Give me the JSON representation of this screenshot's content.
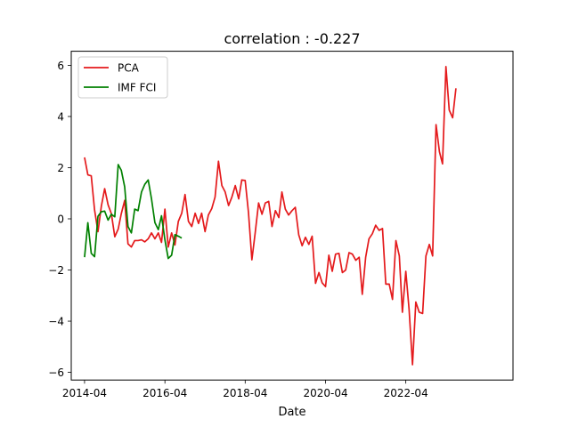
{
  "chart_data": {
    "type": "line",
    "title": "correlation : -0.227",
    "xlabel": "Date",
    "ylabel": "",
    "xlim": [
      "2013-12-01",
      "2024-12-01"
    ],
    "ylim": [
      -6.3,
      6.55
    ],
    "grid": false,
    "legend_position": "top-left",
    "x_ticks": [
      "2014-04",
      "2016-04",
      "2018-04",
      "2020-04",
      "2022-04"
    ],
    "y_ticks": [
      -6,
      -4,
      -2,
      0,
      2,
      4,
      6
    ],
    "series": [
      {
        "name": "PCA",
        "color": "#e41a1c",
        "points": [
          [
            "2014-04-01",
            2.4
          ],
          [
            "2014-05-01",
            1.72
          ],
          [
            "2014-06-01",
            1.68
          ],
          [
            "2014-07-01",
            0.35
          ],
          [
            "2014-08-01",
            -0.5
          ],
          [
            "2014-09-01",
            0.5
          ],
          [
            "2014-10-01",
            1.18
          ],
          [
            "2014-11-01",
            0.55
          ],
          [
            "2014-12-01",
            0.2
          ],
          [
            "2015-01-01",
            -0.7
          ],
          [
            "2015-02-01",
            -0.4
          ],
          [
            "2015-03-01",
            0.2
          ],
          [
            "2015-04-01",
            0.72
          ],
          [
            "2015-05-01",
            -0.98
          ],
          [
            "2015-06-01",
            -1.1
          ],
          [
            "2015-07-01",
            -0.85
          ],
          [
            "2015-08-01",
            -0.85
          ],
          [
            "2015-09-01",
            -0.82
          ],
          [
            "2015-10-01",
            -0.9
          ],
          [
            "2015-11-01",
            -0.78
          ],
          [
            "2015-12-01",
            -0.55
          ],
          [
            "2016-01-01",
            -0.78
          ],
          [
            "2016-02-01",
            -0.55
          ],
          [
            "2016-03-01",
            -0.92
          ],
          [
            "2016-04-01",
            0.38
          ],
          [
            "2016-05-01",
            -1.1
          ],
          [
            "2016-06-01",
            -0.55
          ],
          [
            "2016-07-01",
            -1.02
          ],
          [
            "2016-08-01",
            -0.1
          ],
          [
            "2016-09-01",
            0.22
          ],
          [
            "2016-10-01",
            0.95
          ],
          [
            "2016-11-01",
            -0.1
          ],
          [
            "2016-12-01",
            -0.3
          ],
          [
            "2017-01-01",
            0.22
          ],
          [
            "2017-02-01",
            -0.18
          ],
          [
            "2017-03-01",
            0.22
          ],
          [
            "2017-04-01",
            -0.5
          ],
          [
            "2017-05-01",
            0.15
          ],
          [
            "2017-06-01",
            0.4
          ],
          [
            "2017-07-01",
            0.85
          ],
          [
            "2017-08-01",
            2.25
          ],
          [
            "2017-09-01",
            1.3
          ],
          [
            "2017-10-01",
            1.05
          ],
          [
            "2017-11-01",
            0.52
          ],
          [
            "2017-12-01",
            0.85
          ],
          [
            "2018-01-01",
            1.3
          ],
          [
            "2018-02-01",
            0.78
          ],
          [
            "2018-03-01",
            1.52
          ],
          [
            "2018-04-01",
            1.5
          ],
          [
            "2018-05-01",
            0.25
          ],
          [
            "2018-06-01",
            -1.6
          ],
          [
            "2018-07-01",
            -0.55
          ],
          [
            "2018-08-01",
            0.62
          ],
          [
            "2018-09-01",
            0.18
          ],
          [
            "2018-10-01",
            0.62
          ],
          [
            "2018-11-01",
            0.68
          ],
          [
            "2018-12-01",
            -0.3
          ],
          [
            "2019-01-01",
            0.32
          ],
          [
            "2019-02-01",
            0.05
          ],
          [
            "2019-03-01",
            1.05
          ],
          [
            "2019-04-01",
            0.38
          ],
          [
            "2019-05-01",
            0.15
          ],
          [
            "2019-06-01",
            0.32
          ],
          [
            "2019-07-01",
            0.45
          ],
          [
            "2019-08-01",
            -0.62
          ],
          [
            "2019-09-01",
            -1.05
          ],
          [
            "2019-10-01",
            -0.72
          ],
          [
            "2019-11-01",
            -1.0
          ],
          [
            "2019-12-01",
            -0.68
          ],
          [
            "2020-01-01",
            -2.52
          ],
          [
            "2020-02-01",
            -2.1
          ],
          [
            "2020-03-01",
            -2.5
          ],
          [
            "2020-04-01",
            -2.65
          ],
          [
            "2020-05-01",
            -1.42
          ],
          [
            "2020-06-01",
            -2.05
          ],
          [
            "2020-07-01",
            -1.38
          ],
          [
            "2020-08-01",
            -1.35
          ],
          [
            "2020-09-01",
            -2.1
          ],
          [
            "2020-10-01",
            -2.0
          ],
          [
            "2020-11-01",
            -1.32
          ],
          [
            "2020-12-01",
            -1.38
          ],
          [
            "2021-01-01",
            -1.62
          ],
          [
            "2021-02-01",
            -1.5
          ],
          [
            "2021-03-01",
            -2.95
          ],
          [
            "2021-04-01",
            -1.5
          ],
          [
            "2021-05-01",
            -0.78
          ],
          [
            "2021-06-01",
            -0.58
          ],
          [
            "2021-07-01",
            -0.25
          ],
          [
            "2021-08-01",
            -0.45
          ],
          [
            "2021-09-01",
            -0.38
          ],
          [
            "2021-10-01",
            -2.55
          ],
          [
            "2021-11-01",
            -2.55
          ],
          [
            "2021-12-01",
            -3.15
          ],
          [
            "2022-01-01",
            -0.85
          ],
          [
            "2022-02-01",
            -1.45
          ],
          [
            "2022-03-01",
            -3.65
          ],
          [
            "2022-04-01",
            -2.05
          ],
          [
            "2022-05-01",
            -3.55
          ],
          [
            "2022-06-01",
            -5.7
          ],
          [
            "2022-07-01",
            -3.25
          ],
          [
            "2022-08-01",
            -3.65
          ],
          [
            "2022-09-01",
            -3.7
          ],
          [
            "2022-10-01",
            -1.45
          ],
          [
            "2022-11-01",
            -1.0
          ],
          [
            "2022-12-01",
            -1.45
          ],
          [
            "2023-01-01",
            3.68
          ],
          [
            "2023-02-01",
            2.62
          ],
          [
            "2023-03-01",
            2.15
          ],
          [
            "2023-04-01",
            5.95
          ],
          [
            "2023-05-01",
            4.25
          ],
          [
            "2023-06-01",
            3.95
          ],
          [
            "2023-07-01",
            5.1
          ]
        ]
      },
      {
        "name": "IMF FCI",
        "color": "#008000",
        "points": [
          [
            "2014-04-01",
            -1.5
          ],
          [
            "2014-05-01",
            -0.15
          ],
          [
            "2014-06-01",
            -1.35
          ],
          [
            "2014-07-01",
            -1.48
          ],
          [
            "2014-08-01",
            0.1
          ],
          [
            "2014-09-01",
            0.28
          ],
          [
            "2014-10-01",
            0.3
          ],
          [
            "2014-11-01",
            -0.05
          ],
          [
            "2014-12-01",
            0.18
          ],
          [
            "2015-01-01",
            0.08
          ],
          [
            "2015-02-01",
            2.12
          ],
          [
            "2015-03-01",
            1.9
          ],
          [
            "2015-04-01",
            1.25
          ],
          [
            "2015-05-01",
            -0.3
          ],
          [
            "2015-06-01",
            -0.55
          ],
          [
            "2015-07-01",
            0.38
          ],
          [
            "2015-08-01",
            0.32
          ],
          [
            "2015-09-01",
            1.05
          ],
          [
            "2015-10-01",
            1.35
          ],
          [
            "2015-11-01",
            1.52
          ],
          [
            "2015-12-01",
            0.78
          ],
          [
            "2016-01-01",
            -0.15
          ],
          [
            "2016-02-01",
            -0.42
          ],
          [
            "2016-03-01",
            0.12
          ],
          [
            "2016-04-01",
            -0.82
          ],
          [
            "2016-05-01",
            -1.55
          ],
          [
            "2016-06-01",
            -1.42
          ],
          [
            "2016-07-01",
            -0.62
          ],
          [
            "2016-08-01",
            -0.68
          ],
          [
            "2016-09-01",
            -0.75
          ]
        ]
      }
    ]
  }
}
